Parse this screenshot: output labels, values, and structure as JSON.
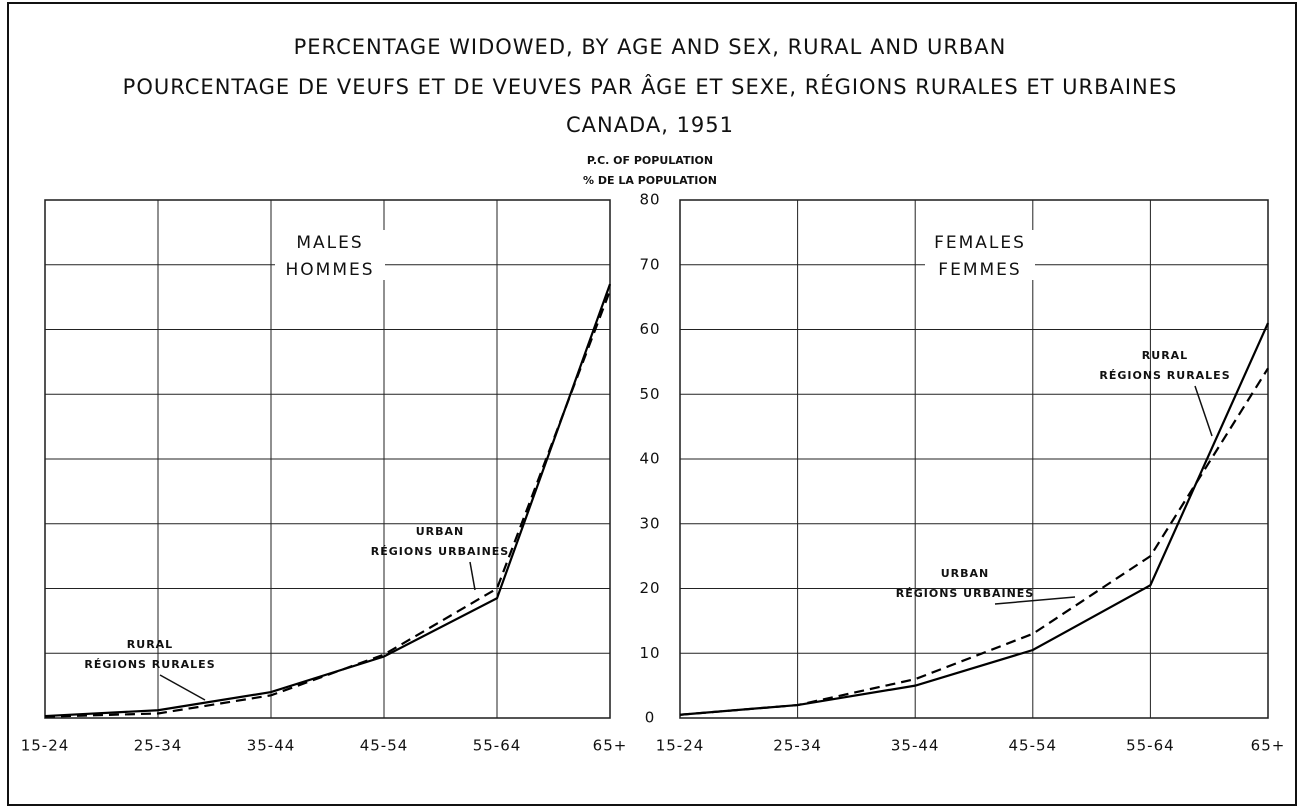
{
  "title": "PERCENTAGE WIDOWED, BY AGE AND SEX, RURAL AND URBAN",
  "subtitle": "POURCENTAGE DE VEUFS ET DE VEUVES PAR ÂGE ET SEXE, RÉGIONS RURALES ET URBAINES",
  "place": "CANADA, 1951",
  "y_label": "P.C. OF POPULATION",
  "y_label_fr": "% DE LA POPULATION",
  "chart_data": [
    {
      "type": "line",
      "panel_title": "MALES",
      "panel_title_fr": "HOMMES",
      "categories": [
        "15-24",
        "25-34",
        "35-44",
        "45-54",
        "55-64",
        "65+"
      ],
      "ylim": [
        0,
        80
      ],
      "yticks": [
        0,
        10,
        20,
        30,
        40,
        50,
        60,
        70,
        80
      ],
      "grid": true,
      "series": [
        {
          "name": "RURAL",
          "name_fr": "RÉGIONS RURALES",
          "color": "#000",
          "dash": "solid",
          "values": [
            0.3,
            1.2,
            4,
            9.5,
            18.5,
            67
          ]
        },
        {
          "name": "URBAN",
          "name_fr": "RÉGIONS URBAINES",
          "color": "#000",
          "dash": "dashed",
          "values": [
            0.2,
            0.7,
            3.5,
            9.8,
            20,
            66
          ]
        }
      ]
    },
    {
      "type": "line",
      "panel_title": "FEMALES",
      "panel_title_fr": "FEMMES",
      "categories": [
        "15-24",
        "25-34",
        "35-44",
        "45-54",
        "55-64",
        "65+"
      ],
      "ylim": [
        0,
        80
      ],
      "yticks": [
        0,
        10,
        20,
        30,
        40,
        50,
        60,
        70,
        80
      ],
      "grid": true,
      "series": [
        {
          "name": "RURAL",
          "name_fr": "RÉGIONS RURALES",
          "color": "#000",
          "dash": "solid",
          "values": [
            0.5,
            2,
            5,
            10.5,
            20.5,
            61
          ]
        },
        {
          "name": "URBAN",
          "name_fr": "RÉGIONS URBAINES",
          "color": "#000",
          "dash": "dashed",
          "values": [
            0.5,
            2,
            6,
            13,
            25,
            54
          ]
        }
      ]
    }
  ]
}
